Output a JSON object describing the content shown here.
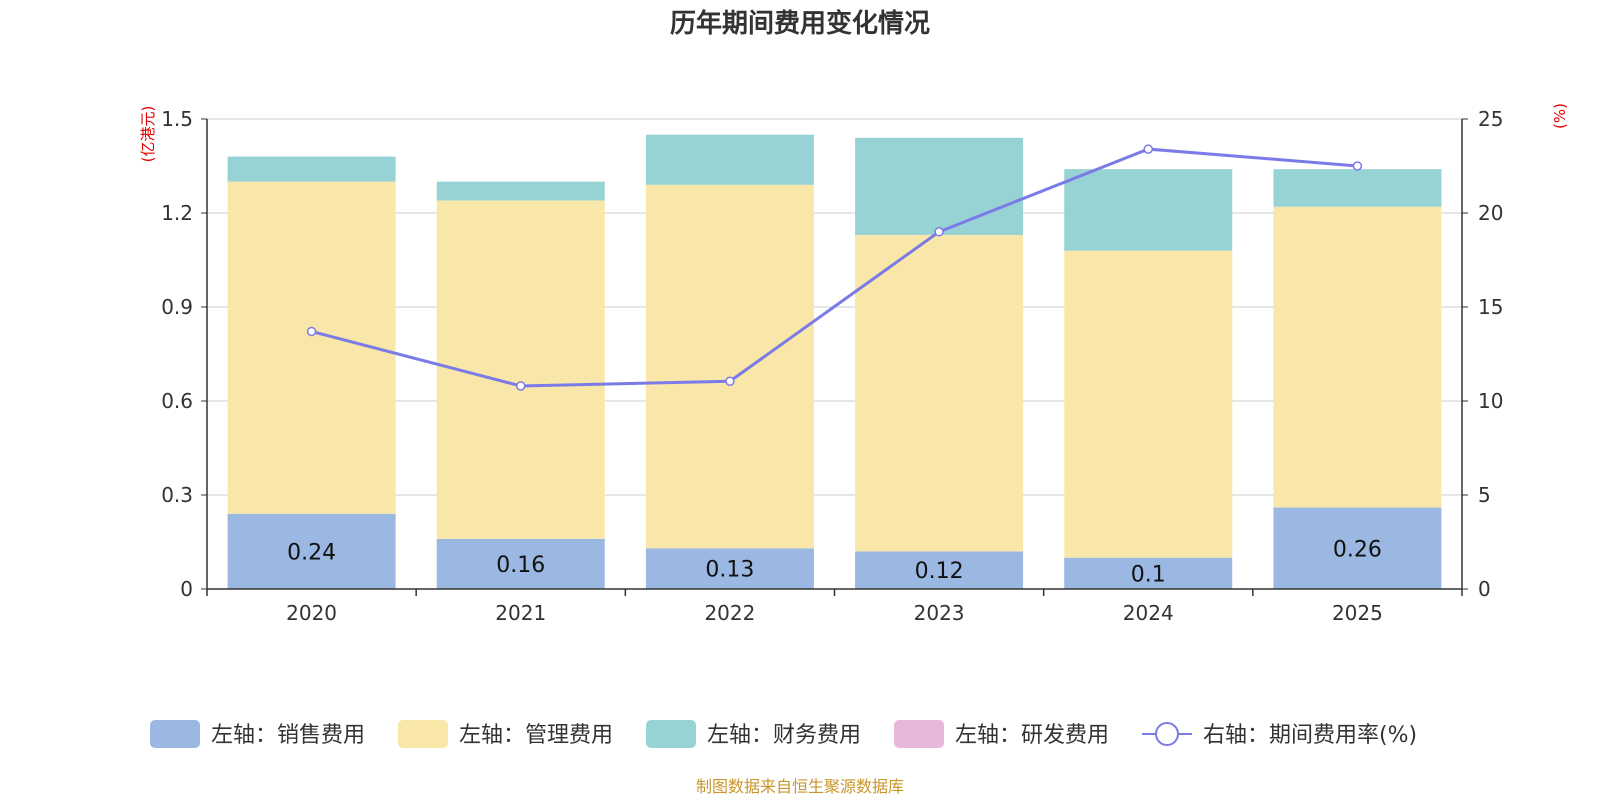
{
  "chart_data": {
    "type": "bar",
    "stacked": true,
    "title": "历年期间费用变化情况",
    "categories": [
      "2020",
      "2021",
      "2022",
      "2023",
      "2024",
      "2025"
    ],
    "left_axis": {
      "unit": "(亿港元)",
      "ylim": [
        0,
        1.5
      ],
      "ticks": [
        "0",
        "0.3",
        "0.6",
        "0.9",
        "1.2",
        "1.5"
      ],
      "tick_values": [
        0,
        0.3,
        0.6,
        0.9,
        1.2,
        1.5
      ]
    },
    "right_axis": {
      "unit": "(%)",
      "ylim": [
        0,
        25
      ],
      "ticks": [
        "0",
        "5",
        "10",
        "15",
        "20",
        "25"
      ],
      "tick_values": [
        0,
        5,
        10,
        15,
        20,
        25
      ]
    },
    "series": [
      {
        "name": "左轴：销售费用",
        "axis": "left",
        "kind": "bar",
        "color": "#9bb8e2",
        "values": [
          0.24,
          0.16,
          0.13,
          0.12,
          0.1,
          0.26
        ],
        "labels": [
          "0.24",
          "0.16",
          "0.13",
          "0.12",
          "0.1",
          "0.26"
        ]
      },
      {
        "name": "左轴：管理费用",
        "axis": "left",
        "kind": "bar",
        "color": "#f8e7a8",
        "values": [
          1.06,
          1.08,
          1.16,
          1.01,
          0.98,
          0.96
        ]
      },
      {
        "name": "左轴：财务费用",
        "axis": "left",
        "kind": "bar",
        "color": "#97d3d5",
        "values": [
          0.08,
          0.06,
          0.16,
          0.31,
          0.26,
          0.12
        ]
      },
      {
        "name": "左轴：研发费用",
        "axis": "left",
        "kind": "bar",
        "color": "#e8b8da",
        "values": [
          0,
          0,
          0,
          0,
          0,
          0
        ]
      },
      {
        "name": "右轴：期间费用率(%)",
        "axis": "right",
        "kind": "line",
        "color": "#7b7be8",
        "values": [
          13.7,
          10.8,
          11.05,
          19.0,
          23.4,
          22.5
        ]
      }
    ],
    "grid": true,
    "legend_position": "bottom"
  },
  "source": "制图数据来自恒生聚源数据库"
}
